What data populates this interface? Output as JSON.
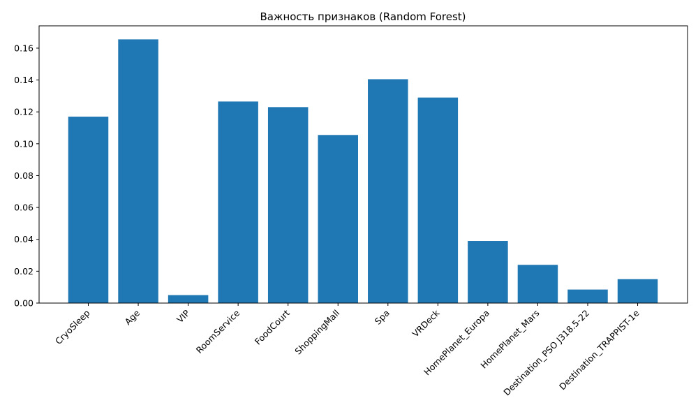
{
  "chart_data": {
    "type": "bar",
    "title": "Важность признаков (Random Forest)",
    "xlabel": "",
    "ylabel": "",
    "categories": [
      "CryoSleep",
      "Age",
      "VIP",
      "RoomService",
      "FoodCourt",
      "ShoppingMall",
      "Spa",
      "VRDeck",
      "HomePlanet_Europa",
      "HomePlanet_Mars",
      "Destination_PSO J318.5-22",
      "Destination_TRAPPIST-1e"
    ],
    "values": [
      0.117,
      0.1655,
      0.005,
      0.1265,
      0.123,
      0.1055,
      0.1405,
      0.129,
      0.039,
      0.024,
      0.0085,
      0.015
    ],
    "ylim": [
      0,
      0.174
    ],
    "yticks": [
      0.0,
      0.02,
      0.04,
      0.06,
      0.08,
      0.1,
      0.12,
      0.14,
      0.16
    ],
    "ytick_labels": [
      "0.00",
      "0.02",
      "0.04",
      "0.06",
      "0.08",
      "0.10",
      "0.12",
      "0.14",
      "0.16"
    ],
    "bar_color": "#1f77b4",
    "grid": false,
    "legend": "none"
  }
}
